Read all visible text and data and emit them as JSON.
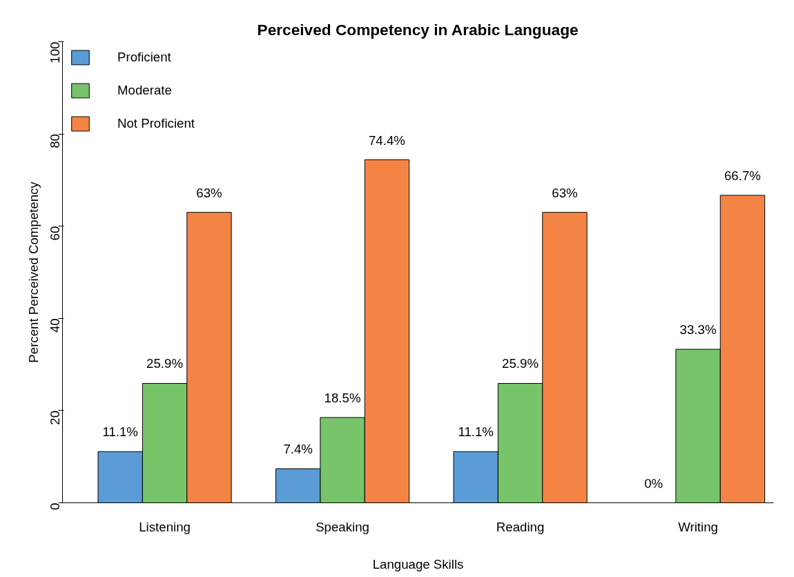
{
  "chart_data": {
    "type": "bar",
    "title": "Perceived Competency in Arabic Language",
    "xlabel": "Language Skills",
    "ylabel": "Percent Perceived Competency",
    "categories": [
      "Listening",
      "Speaking",
      "Reading",
      "Writing"
    ],
    "series": [
      {
        "name": "Proficient",
        "color": "#5b9bd5",
        "values": [
          11.1,
          7.4,
          11.1,
          0
        ],
        "value_labels": [
          "11.1%",
          "7.4%",
          "11.1%",
          "0%"
        ]
      },
      {
        "name": "Moderate",
        "color": "#77c46b",
        "values": [
          25.9,
          18.5,
          25.9,
          33.3
        ],
        "value_labels": [
          "25.9%",
          "18.5%",
          "25.9%",
          "33.3%"
        ]
      },
      {
        "name": "Not Proficient",
        "color": "#f48446",
        "values": [
          63,
          74.4,
          63,
          66.7
        ],
        "value_labels": [
          "63%",
          "74.4%",
          "63%",
          "66.7%"
        ]
      }
    ],
    "ylim": [
      0,
      100
    ],
    "yticks": [
      0,
      20,
      40,
      60,
      80,
      100
    ],
    "grid": false,
    "legend": "top left"
  }
}
